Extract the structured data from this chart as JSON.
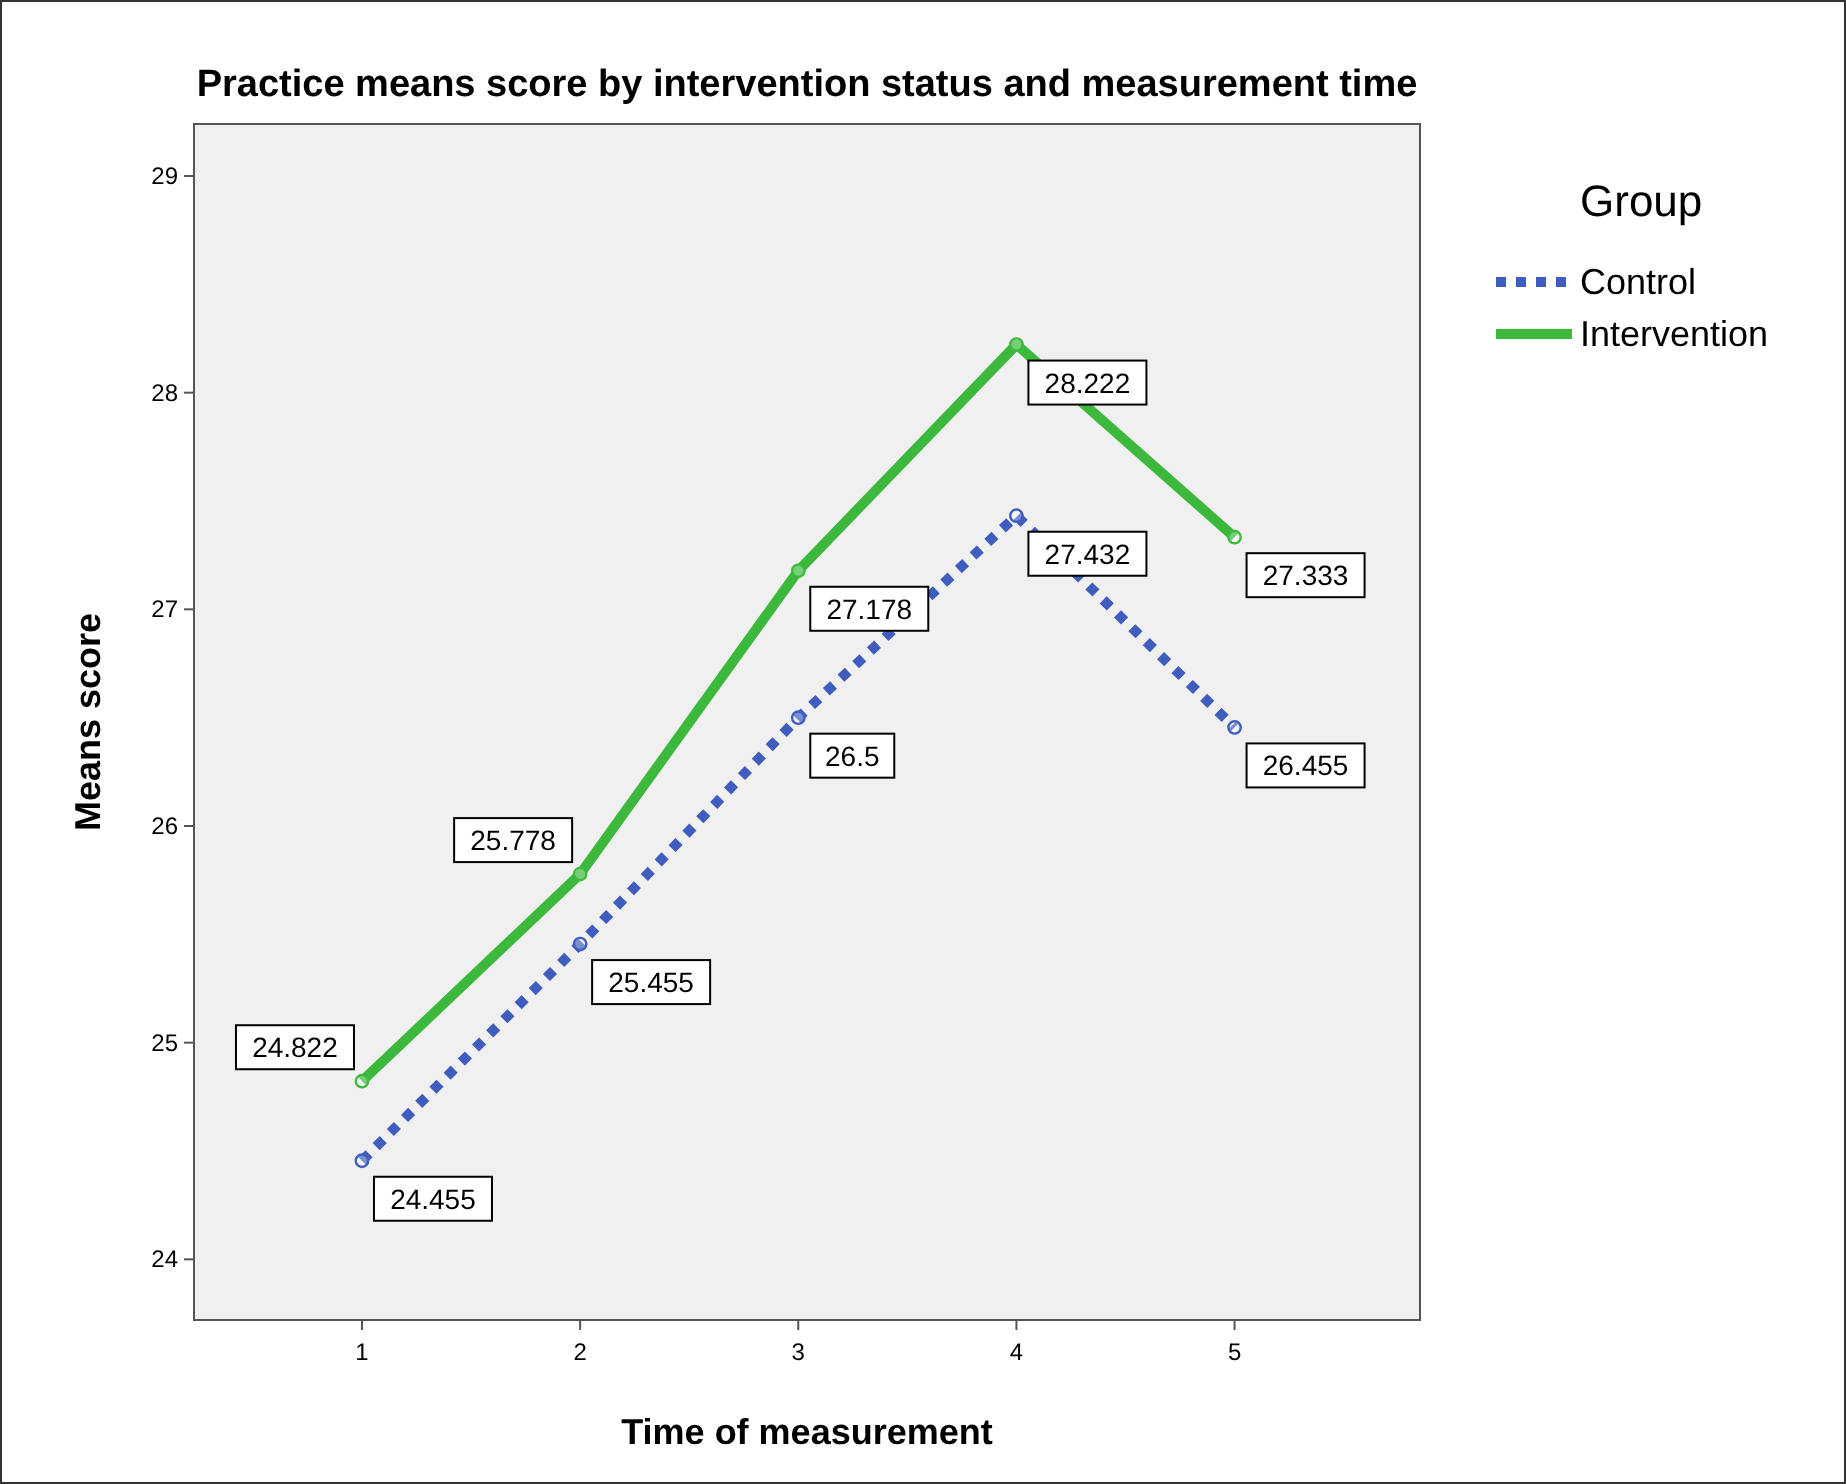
{
  "chart_data": {
    "type": "line",
    "title": "Practice means score by intervention status and measurement time",
    "xlabel": "Time of measurement",
    "ylabel": "Means score",
    "legend_title": "Group",
    "x": [
      1,
      2,
      3,
      4,
      5
    ],
    "xlim": [
      0.23,
      5.85
    ],
    "xticks": [
      1,
      2,
      3,
      4,
      5
    ],
    "ylim": [
      23.72,
      29.24
    ],
    "yticks": [
      24,
      25,
      26,
      27,
      28,
      29
    ],
    "series": [
      {
        "name": "Control",
        "color": "#3f5cbf",
        "line_style": "dotted",
        "values": [
          24.455,
          25.455,
          26.5,
          27.432,
          26.455
        ]
      },
      {
        "name": "Intervention",
        "color": "#3cb93c",
        "line_style": "solid",
        "values": [
          24.822,
          25.778,
          27.178,
          28.222,
          27.333
        ]
      }
    ],
    "marker": "circle",
    "data_labels": true,
    "grid": false,
    "legend": "top right"
  }
}
